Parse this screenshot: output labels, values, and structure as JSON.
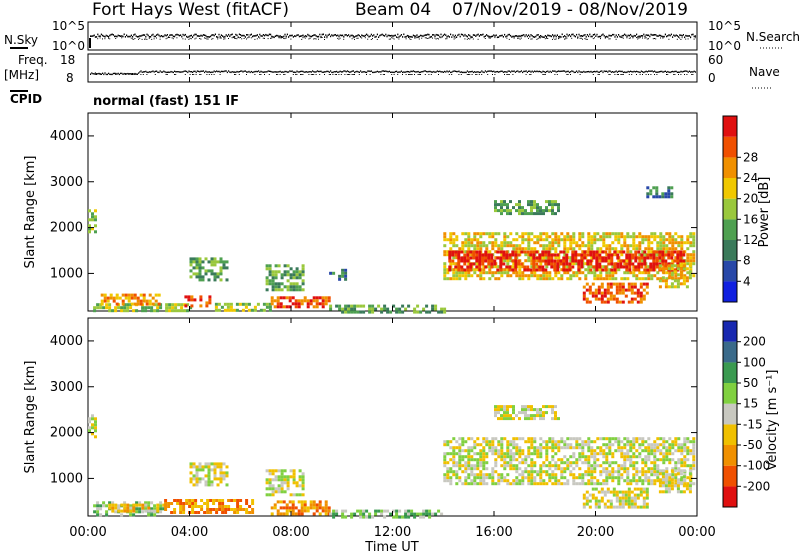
{
  "header": {
    "station": "Fort Hays West (fitACF)",
    "beam": "Beam 04",
    "dates": "07/Nov/2019 - 08/Nov/2019"
  },
  "noise_panel": {
    "left_label": "N.Sky",
    "right_label": "N.Search",
    "left_ticks": [
      "10^5",
      "10^0"
    ],
    "right_ticks": [
      "10^5",
      "10^0"
    ]
  },
  "freq_panel": {
    "left_label_line1": "Freq.",
    "left_label_line2": "[MHz]",
    "right_label": "Nave",
    "left_ticks": [
      "18",
      "8"
    ],
    "right_ticks": [
      "60",
      "0"
    ],
    "cpid_label": "CPID",
    "cpid_text": "normal (fast) 151 IF"
  },
  "time_axis": {
    "label": "Time UT",
    "ticks": [
      "00:00",
      "04:00",
      "08:00",
      "12:00",
      "16:00",
      "20:00",
      "00:00"
    ]
  },
  "colors": {
    "power": [
      "#1020e0",
      "#2848a8",
      "#3a7a5a",
      "#4ea050",
      "#9ac83c",
      "#f0c800",
      "#f09000",
      "#f05000",
      "#e01010"
    ],
    "velocity": [
      "#e01010",
      "#f05000",
      "#f09000",
      "#f0c000",
      "#c8c8c0",
      "#80d040",
      "#3a9a50",
      "#3a6a8a",
      "#1828b0"
    ]
  },
  "chart_data": [
    {
      "type": "heatmap",
      "panel": "power",
      "ylabel": "Slant Range [km]",
      "ylim": [
        180,
        4500
      ],
      "yticks": [
        "1000",
        "2000",
        "3000",
        "4000"
      ],
      "xlim_hours": [
        0,
        24
      ],
      "colorbar_label": "Power [dB]",
      "colorbar_ticks": [
        "4",
        "8",
        "12",
        "16",
        "20",
        "24",
        "28"
      ],
      "regions": [
        {
          "t0": 0.0,
          "t1": 0.3,
          "r0": 1900,
          "r1": 2400,
          "level": 4
        },
        {
          "t0": 0.2,
          "t1": 4.0,
          "r0": 200,
          "r1": 350,
          "level": 4
        },
        {
          "t0": 0.5,
          "t1": 2.8,
          "r0": 330,
          "r1": 560,
          "level": 6
        },
        {
          "t0": 3.8,
          "t1": 4.8,
          "r0": 300,
          "r1": 520,
          "level": 7
        },
        {
          "t0": 4.0,
          "t1": 5.5,
          "r0": 880,
          "r1": 1350,
          "level": 3
        },
        {
          "t0": 5.0,
          "t1": 7.2,
          "r0": 200,
          "r1": 360,
          "level": 4
        },
        {
          "t0": 7.0,
          "t1": 8.5,
          "r0": 650,
          "r1": 1200,
          "level": 3
        },
        {
          "t0": 7.2,
          "t1": 9.5,
          "r0": 250,
          "r1": 500,
          "level": 7
        },
        {
          "t0": 9.5,
          "t1": 10.1,
          "r0": 850,
          "r1": 1100,
          "level": 2
        },
        {
          "t0": 9.5,
          "t1": 14.0,
          "r0": 180,
          "r1": 320,
          "level": 3
        },
        {
          "t0": 14.0,
          "t1": 23.9,
          "r0": 900,
          "r1": 1900,
          "level": 5
        },
        {
          "t0": 14.2,
          "t1": 23.5,
          "r0": 1100,
          "r1": 1500,
          "level": 8
        },
        {
          "t0": 16.0,
          "t1": 18.5,
          "r0": 2300,
          "r1": 2600,
          "level": 3
        },
        {
          "t0": 19.5,
          "t1": 22.0,
          "r0": 400,
          "r1": 800,
          "level": 7
        },
        {
          "t0": 22.5,
          "t1": 23.8,
          "r0": 700,
          "r1": 1200,
          "level": 5
        },
        {
          "t0": 22.0,
          "t1": 23.0,
          "r0": 2650,
          "r1": 2900,
          "level": 2
        }
      ]
    },
    {
      "type": "heatmap",
      "panel": "velocity",
      "ylabel": "Slant Range [km]",
      "ylim": [
        180,
        4500
      ],
      "yticks": [
        "1000",
        "2000",
        "3000",
        "4000"
      ],
      "xlim_hours": [
        0,
        24
      ],
      "colorbar_label": "Velocity [m s⁻¹]",
      "colorbar_ticks": [
        "200",
        "100",
        "50",
        "15",
        "-15",
        "-50",
        "-100",
        "-200"
      ],
      "regions": [
        {
          "t0": 0.0,
          "t1": 0.3,
          "r0": 1900,
          "r1": 2400,
          "level": 4
        },
        {
          "t0": 0.2,
          "t1": 3.0,
          "r0": 200,
          "r1": 500,
          "level": 5
        },
        {
          "t0": 0.8,
          "t1": 3.0,
          "r0": 300,
          "r1": 450,
          "level": 3
        },
        {
          "t0": 3.0,
          "t1": 6.5,
          "r0": 250,
          "r1": 550,
          "level": 2
        },
        {
          "t0": 4.0,
          "t1": 5.5,
          "r0": 880,
          "r1": 1350,
          "level": 4
        },
        {
          "t0": 7.0,
          "t1": 8.5,
          "r0": 650,
          "r1": 1200,
          "level": 4
        },
        {
          "t0": 7.2,
          "t1": 9.5,
          "r0": 250,
          "r1": 520,
          "level": 2
        },
        {
          "t0": 9.5,
          "t1": 14.0,
          "r0": 180,
          "r1": 320,
          "level": 5
        },
        {
          "t0": 14.0,
          "t1": 23.9,
          "r0": 900,
          "r1": 1900,
          "level": 4
        },
        {
          "t0": 16.0,
          "t1": 18.5,
          "r0": 2300,
          "r1": 2600,
          "level": 4
        },
        {
          "t0": 19.5,
          "t1": 22.0,
          "r0": 400,
          "r1": 800,
          "level": 4
        },
        {
          "t0": 22.5,
          "t1": 23.8,
          "r0": 700,
          "r1": 1200,
          "level": 4
        }
      ]
    }
  ]
}
